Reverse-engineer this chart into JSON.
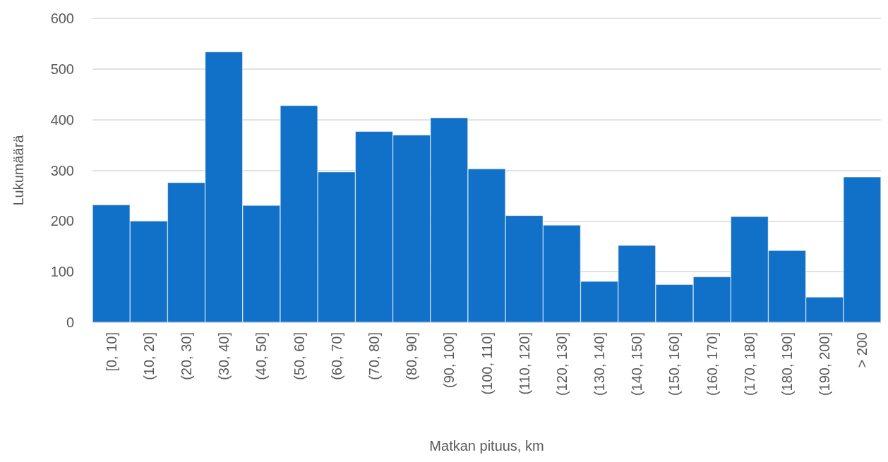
{
  "chart_data": {
    "type": "bar",
    "xlabel": "Matkan pituus, km",
    "ylabel": "Lukumäärä",
    "categories": [
      "[0, 10]",
      "(10, 20]",
      "(20, 30]",
      "(30, 40]",
      "(40, 50]",
      "(50, 60]",
      "(60, 70]",
      "(70, 80]",
      "(80, 90]",
      "(90, 100]",
      "(100, 110]",
      "(110, 120]",
      "(120, 130]",
      "(130, 140]",
      "(140, 150]",
      "(150, 160]",
      "(160, 170]",
      "(170, 180]",
      "(180, 190]",
      "(190, 200]",
      "> 200"
    ],
    "values": [
      232,
      200,
      276,
      534,
      231,
      428,
      297,
      377,
      370,
      404,
      303,
      211,
      192,
      81,
      152,
      75,
      90,
      209,
      142,
      50,
      287
    ],
    "color": "#1170c8",
    "ylim": [
      0,
      600
    ],
    "yticks": [
      0,
      100,
      200,
      300,
      400,
      500,
      600
    ],
    "grid": "y"
  }
}
